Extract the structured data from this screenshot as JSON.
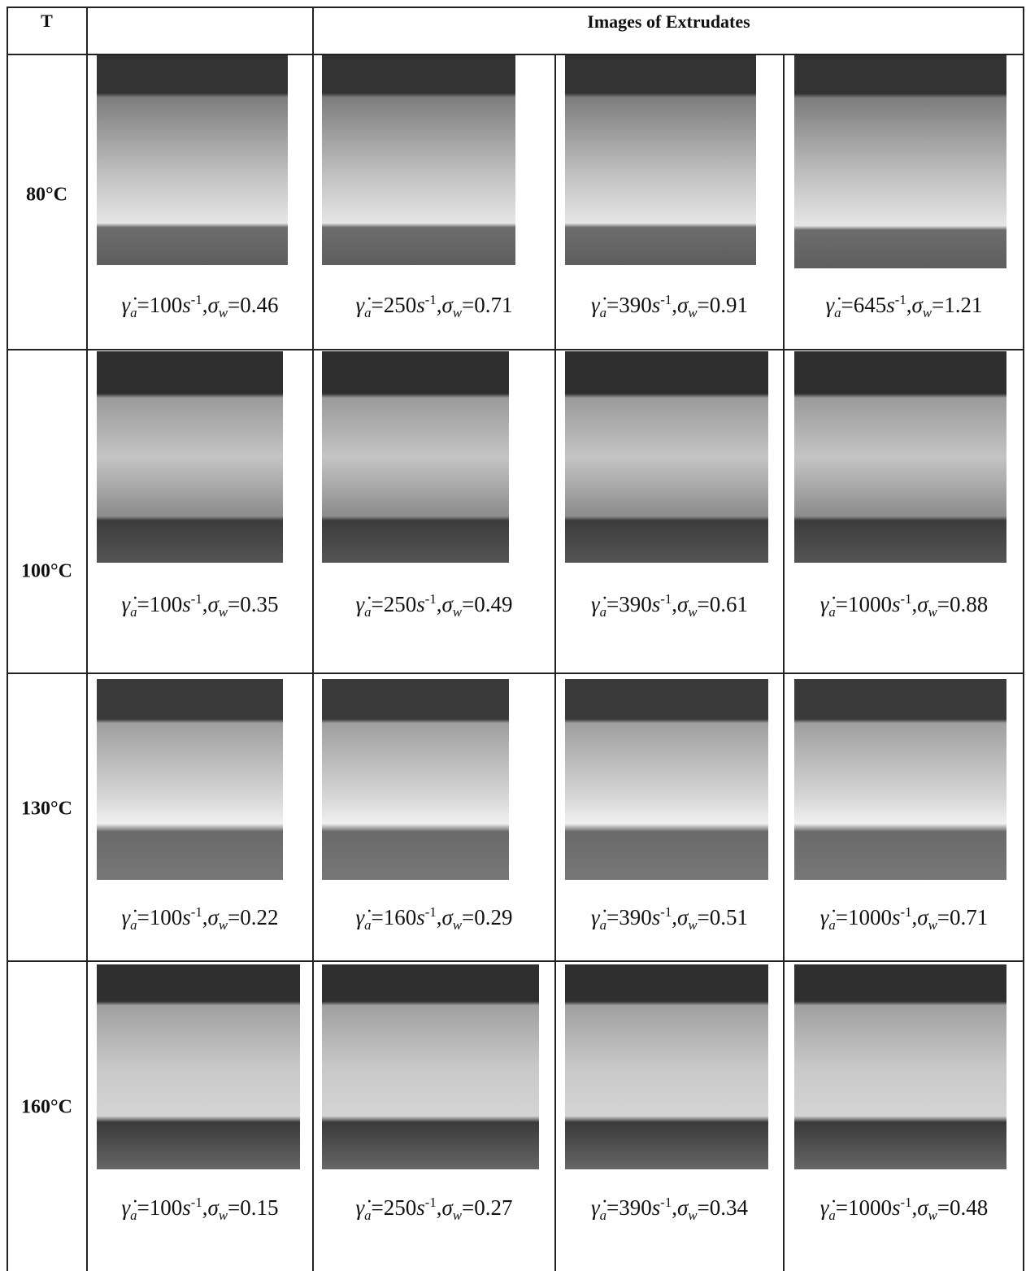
{
  "header": {
    "temperature": "T",
    "images": "Images of Extrudates"
  },
  "notation": {
    "rate_symbol": "γ̇",
    "rate_subscript": "a",
    "equals": "=",
    "unit": "s",
    "unit_exponent": "-1",
    "separator": ",",
    "stress_symbol": "σ",
    "stress_subscript": "w"
  },
  "rows": [
    {
      "temperature": "80°C",
      "cells": [
        {
          "rate": 100,
          "stress": 0.46
        },
        {
          "rate": 250,
          "stress": 0.71
        },
        {
          "rate": 390,
          "stress": 0.91
        },
        {
          "rate": 645,
          "stress": 1.21
        }
      ]
    },
    {
      "temperature": "100°C",
      "cells": [
        {
          "rate": 100,
          "stress": 0.35
        },
        {
          "rate": 250,
          "stress": 0.49
        },
        {
          "rate": 390,
          "stress": 0.61
        },
        {
          "rate": 1000,
          "stress": 0.88
        }
      ]
    },
    {
      "temperature": "130°C",
      "cells": [
        {
          "rate": 100,
          "stress": 0.22
        },
        {
          "rate": 160,
          "stress": 0.29
        },
        {
          "rate": 390,
          "stress": 0.51
        },
        {
          "rate": 1000,
          "stress": 0.71
        }
      ]
    },
    {
      "temperature": "160°C",
      "cells": [
        {
          "rate": 100,
          "stress": 0.15
        },
        {
          "rate": 250,
          "stress": 0.27
        },
        {
          "rate": 390,
          "stress": 0.34
        },
        {
          "rate": 1000,
          "stress": 0.48
        }
      ]
    }
  ]
}
